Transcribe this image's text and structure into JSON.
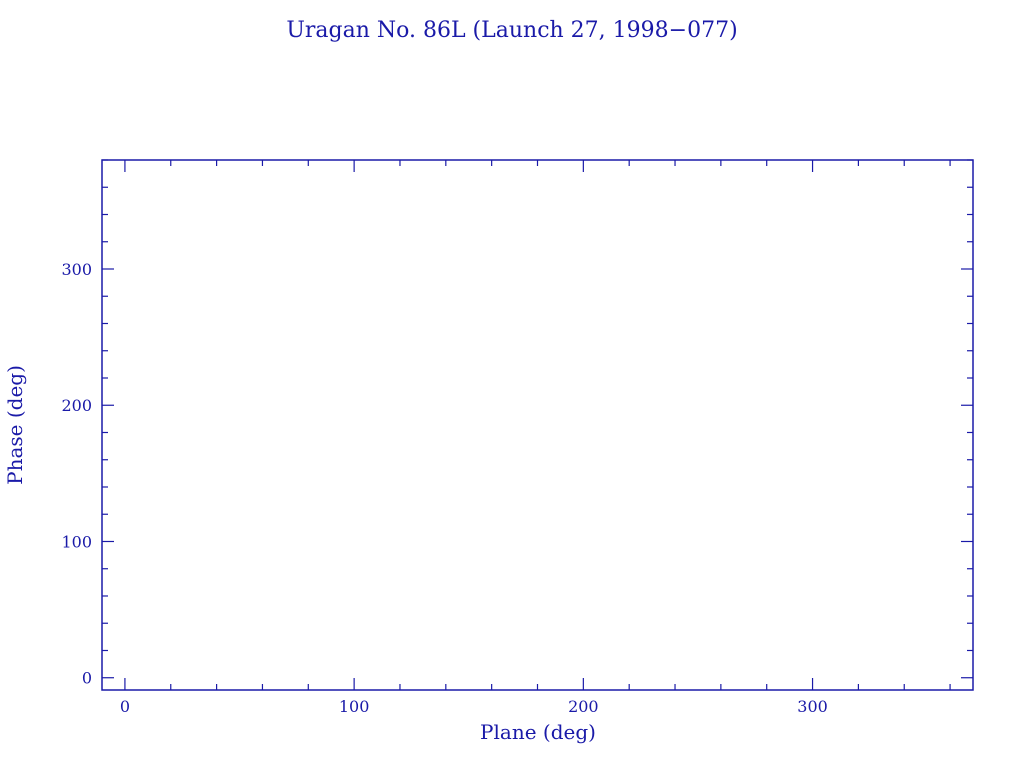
{
  "chart_data": {
    "type": "scatter",
    "title": "Uragan No. 86L (Launch 27, 1998−077)",
    "xlabel": "Plane (deg)",
    "ylabel": "Phase (deg)",
    "xlim": [
      -10,
      370
    ],
    "ylim": [
      -9,
      380
    ],
    "x_ticks": [
      0,
      100,
      200,
      300
    ],
    "y_ticks": [
      0,
      100,
      200,
      300
    ],
    "x_minor_step": 20,
    "y_minor_step": 20,
    "grid": false,
    "series": [],
    "color": "#1a1aa8"
  }
}
